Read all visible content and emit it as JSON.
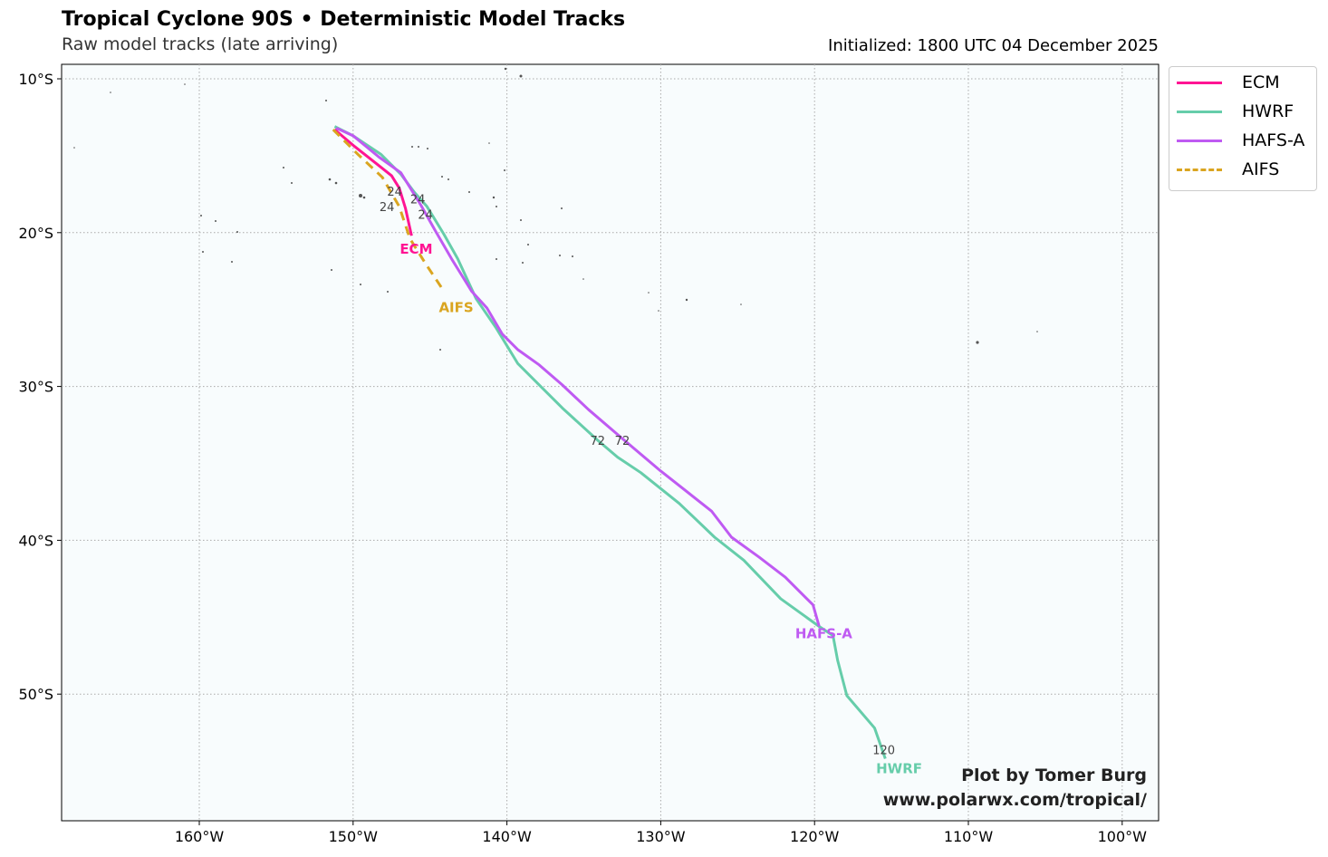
{
  "header": {
    "title": "Tropical Cyclone 90S • Deterministic Model Tracks",
    "subtitle": "Raw model tracks (late arriving)",
    "initialized": "Initialized: 1800 UTC 04 December 2025"
  },
  "credit": {
    "line1": "Plot by Tomer Burg",
    "line2": "www.polarwx.com/tropical/"
  },
  "chart_data": {
    "type": "line",
    "xlim": [
      -169,
      -97.6
    ],
    "ylim": [
      -58.2,
      -9.1
    ],
    "grid": true,
    "legend_placement": "outside-top-right",
    "x_ticks": [
      {
        "v": -160,
        "label": "160°W"
      },
      {
        "v": -150,
        "label": "150°W"
      },
      {
        "v": -140,
        "label": "140°W"
      },
      {
        "v": -130,
        "label": "130°W"
      },
      {
        "v": -120,
        "label": "120°W"
      },
      {
        "v": -110,
        "label": "110°W"
      },
      {
        "v": -100,
        "label": "100°W"
      }
    ],
    "y_ticks": [
      {
        "v": -10,
        "label": "10°S"
      },
      {
        "v": -20,
        "label": "20°S"
      },
      {
        "v": -30,
        "label": "30°S"
      },
      {
        "v": -40,
        "label": "40°S"
      },
      {
        "v": -50,
        "label": "50°S"
      }
    ],
    "series": [
      {
        "name": "ECM",
        "color": "#ff1493",
        "dashed": false,
        "points": [
          [
            -151.2,
            -13.3
          ],
          [
            -149.9,
            -14.4
          ],
          [
            -148.5,
            -15.5
          ],
          [
            -147.5,
            -16.3
          ],
          [
            -147.0,
            -17.1
          ],
          [
            -146.6,
            -18.4
          ],
          [
            -146.2,
            -20.2
          ]
        ],
        "end_label": {
          "text": "ECM",
          "lon": -145.9,
          "lat": -21.0
        },
        "hour_labels": [
          {
            "text": "24",
            "lon": -147.3,
            "lat": -17.3
          }
        ]
      },
      {
        "name": "HWRF",
        "color": "#66cdaa",
        "dashed": false,
        "points": [
          [
            -151.2,
            -13.1
          ],
          [
            -150.0,
            -13.7
          ],
          [
            -148.2,
            -14.9
          ],
          [
            -146.9,
            -16.2
          ],
          [
            -146.0,
            -17.4
          ],
          [
            -145.2,
            -18.3
          ],
          [
            -144.1,
            -20.1
          ],
          [
            -143.2,
            -21.7
          ],
          [
            -142.0,
            -24.3
          ],
          [
            -140.7,
            -26.2
          ],
          [
            -139.3,
            -28.5
          ],
          [
            -137.9,
            -29.9
          ],
          [
            -136.4,
            -31.4
          ],
          [
            -134.1,
            -33.5
          ],
          [
            -132.8,
            -34.6
          ],
          [
            -131.3,
            -35.6
          ],
          [
            -128.8,
            -37.6
          ],
          [
            -126.5,
            -39.8
          ],
          [
            -124.6,
            -41.3
          ],
          [
            -122.2,
            -43.8
          ],
          [
            -119.7,
            -45.6
          ],
          [
            -118.8,
            -46.2
          ],
          [
            -118.5,
            -47.8
          ],
          [
            -117.9,
            -50.1
          ],
          [
            -116.1,
            -52.2
          ],
          [
            -115.4,
            -54.2
          ]
        ],
        "end_label": {
          "text": "HWRF",
          "lon": -114.5,
          "lat": -54.8
        },
        "hour_labels": [
          {
            "text": "24",
            "lon": -145.8,
            "lat": -17.8
          },
          {
            "text": "72",
            "lon": -134.1,
            "lat": -33.5
          },
          {
            "text": "120",
            "lon": -115.5,
            "lat": -53.6
          }
        ]
      },
      {
        "name": "HAFS-A",
        "color": "#bf5af2",
        "dashed": false,
        "points": [
          [
            -151.1,
            -13.2
          ],
          [
            -150.0,
            -13.7
          ],
          [
            -148.3,
            -15.1
          ],
          [
            -146.9,
            -16.1
          ],
          [
            -145.6,
            -18.2
          ],
          [
            -144.7,
            -19.8
          ],
          [
            -143.6,
            -21.7
          ],
          [
            -142.3,
            -23.8
          ],
          [
            -141.3,
            -24.9
          ],
          [
            -140.3,
            -26.6
          ],
          [
            -139.3,
            -27.6
          ],
          [
            -137.9,
            -28.6
          ],
          [
            -136.4,
            -29.9
          ],
          [
            -134.7,
            -31.5
          ],
          [
            -132.6,
            -33.3
          ],
          [
            -130.0,
            -35.5
          ],
          [
            -126.7,
            -38.1
          ],
          [
            -125.4,
            -39.8
          ],
          [
            -123.6,
            -41.1
          ],
          [
            -121.9,
            -42.4
          ],
          [
            -120.1,
            -44.2
          ],
          [
            -119.7,
            -45.6
          ]
        ],
        "end_label": {
          "text": "HAFS-A",
          "lon": -119.4,
          "lat": -46.0
        },
        "hour_labels": [
          {
            "text": "24",
            "lon": -145.3,
            "lat": -17.8
          },
          {
            "text": "72",
            "lon": -132.5,
            "lat": -33.5
          }
        ]
      },
      {
        "name": "AIFS",
        "color": "#daa520",
        "dashed": true,
        "points": [
          [
            -151.3,
            -13.3
          ],
          [
            -149.7,
            -14.9
          ],
          [
            -148.1,
            -16.4
          ],
          [
            -147.0,
            -18.3
          ],
          [
            -146.3,
            -20.4
          ],
          [
            -145.3,
            -22.0
          ],
          [
            -144.1,
            -23.8
          ]
        ],
        "end_label": {
          "text": "AIFS",
          "lon": -143.3,
          "lat": -24.8
        },
        "hour_labels": [
          {
            "text": "24",
            "lon": -147.8,
            "lat": -17.3
          }
        ]
      }
    ]
  }
}
